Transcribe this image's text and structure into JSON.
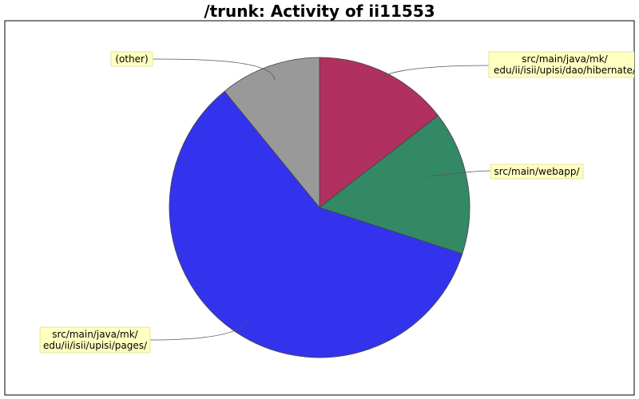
{
  "chart_data": {
    "type": "pie",
    "title": "/trunk: Activity of ii11553",
    "start_angle_deg": 90,
    "direction": "clockwise",
    "slices": [
      {
        "label_lines": [
          "src/main/java/mk/",
          "edu/ii/isii/upisi/dao/hibernate/"
        ],
        "value": 14.5,
        "color": "#b03060"
      },
      {
        "label_lines": [
          "src/main/webapp/"
        ],
        "value": 15.5,
        "color": "#338866"
      },
      {
        "label_lines": [
          "src/main/java/mk/",
          "edu/ii/isii/upisi/pages/"
        ],
        "value": 59.1,
        "color": "#3333ee"
      },
      {
        "label_lines": [
          "(other)"
        ],
        "value": 10.9,
        "color": "#999999"
      }
    ]
  }
}
